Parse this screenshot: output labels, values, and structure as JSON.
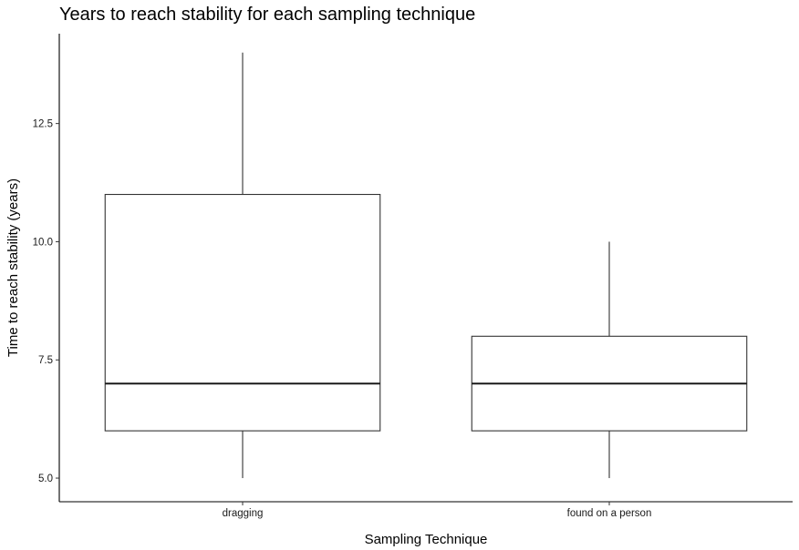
{
  "chart_data": {
    "type": "box",
    "title": "Years to reach stability for each sampling technique",
    "xlabel": "Sampling Technique",
    "ylabel": "Time to reach stability (years)",
    "ylim": [
      4.5,
      14.4
    ],
    "yticks": [
      5.0,
      7.5,
      10.0,
      12.5
    ],
    "ytick_labels": [
      "5.0",
      "7.5",
      "10.0",
      "12.5"
    ],
    "grid": false,
    "categories": [
      "dragging",
      "found on a person"
    ],
    "boxes": [
      {
        "category": "dragging",
        "whisker_low": 5,
        "q1": 6,
        "median": 7,
        "q3": 11,
        "whisker_high": 14
      },
      {
        "category": "found on a person",
        "whisker_low": 5,
        "q1": 6,
        "median": 7,
        "q3": 8,
        "whisker_high": 10
      }
    ],
    "colors": {
      "box_fill": "#ffffff",
      "box_stroke": "#333333",
      "axis": "#000000"
    }
  }
}
